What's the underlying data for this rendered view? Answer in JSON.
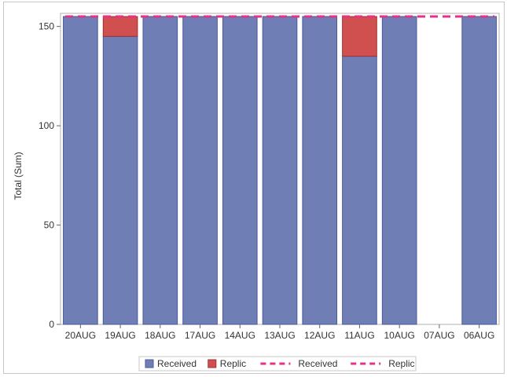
{
  "chart_data": {
    "type": "bar",
    "stacked": true,
    "title": "",
    "xlabel": "",
    "ylabel": "Total (Sum)",
    "ylim": [
      0,
      155
    ],
    "yticks": [
      0,
      50,
      100,
      150
    ],
    "grid": false,
    "legend_position": "bottom",
    "categories": [
      "20AUG",
      "19AUG",
      "18AUG",
      "17AUG",
      "14AUG",
      "13AUG",
      "12AUG",
      "11AUG",
      "10AUG",
      "07AUG",
      "06AUG"
    ],
    "series": [
      {
        "name": "Received",
        "kind": "bar",
        "color": "#6f7fb5",
        "edge": "#4a5a9a",
        "values": [
          155,
          145,
          155,
          155,
          155,
          155,
          155,
          135,
          155,
          0,
          155
        ]
      },
      {
        "name": "Replic",
        "kind": "bar",
        "color": "#d05050",
        "edge": "#a03030",
        "values": [
          0,
          10,
          0,
          0,
          0,
          0,
          0,
          20,
          0,
          0,
          0
        ]
      },
      {
        "name": "Received",
        "kind": "reference-line",
        "color": "#e8308a",
        "style": "dashed",
        "value": 155
      },
      {
        "name": "Replic",
        "kind": "reference-line",
        "color": "#e8308a",
        "style": "dashed",
        "value": 155
      }
    ]
  }
}
